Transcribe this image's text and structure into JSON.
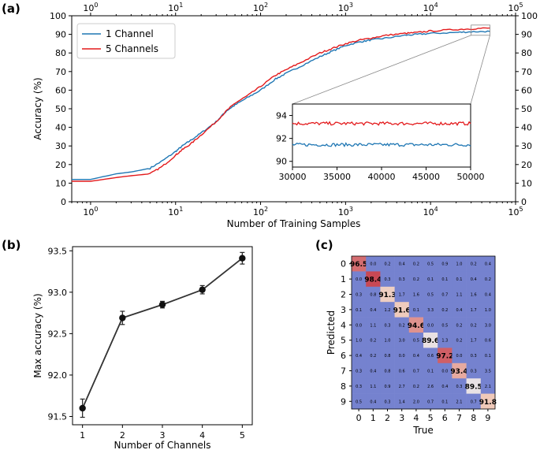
{
  "panel_labels": [
    "(a)",
    "(b)",
    "(c)"
  ],
  "colors": {
    "one_channel": "#1f77b4",
    "five_channels": "#e31a1c",
    "axis": "#000000",
    "cm_low": "#7582cf",
    "cm_high": "#c84652",
    "cm_mid": "#e8e8ee"
  },
  "chart_data": [
    {
      "id": "a",
      "type": "line",
      "title": "",
      "xlabel": "Number of Training Samples",
      "ylabel": "Accuracy (%)",
      "xscale": "log",
      "xlim": [
        0.6,
        100000
      ],
      "ylim": [
        0,
        100
      ],
      "grid": false,
      "legend_position": "top-left",
      "x_ticks": [
        1,
        10,
        100,
        1000,
        10000,
        100000
      ],
      "x_tick_labels": [
        "10^0",
        "10^1",
        "10^2",
        "10^3",
        "10^4",
        "10^5"
      ],
      "y_ticks": [
        0,
        10,
        20,
        30,
        40,
        50,
        60,
        70,
        80,
        90,
        100
      ],
      "y_tick_labels": [
        "0",
        "10",
        "20",
        "30",
        "40",
        "50",
        "60",
        "70",
        "80",
        "90",
        "100"
      ],
      "series": [
        {
          "name": "1 Channel",
          "x": [
            0.6,
            1,
            2,
            3,
            5,
            7,
            10,
            12,
            15,
            20,
            30,
            40,
            50,
            70,
            100,
            150,
            200,
            300,
            500,
            700,
            1000,
            1500,
            2000,
            3000,
            5000,
            7000,
            10000,
            20000,
            30000,
            50000
          ],
          "y": [
            12,
            12,
            15,
            16,
            18,
            22,
            27,
            30,
            33,
            37,
            43,
            49,
            52,
            56,
            60,
            66,
            69,
            73,
            78,
            81,
            84,
            86,
            87,
            88,
            89.5,
            90,
            90.5,
            91,
            91.4,
            91.6
          ]
        },
        {
          "name": "5 Channels",
          "x": [
            0.6,
            1,
            2,
            3,
            5,
            7,
            10,
            12,
            15,
            20,
            30,
            40,
            50,
            70,
            100,
            150,
            200,
            300,
            500,
            700,
            1000,
            1500,
            2000,
            3000,
            5000,
            7000,
            10000,
            20000,
            30000,
            50000
          ],
          "y": [
            11,
            11,
            13,
            14,
            15,
            19,
            25,
            28,
            31,
            36,
            43,
            49,
            53,
            57,
            62,
            68,
            71,
            75,
            80,
            82.5,
            85,
            87,
            88,
            89.5,
            90.5,
            91,
            91.8,
            92.6,
            93,
            93.4
          ]
        }
      ],
      "inset": {
        "xlim": [
          30000,
          50000
        ],
        "ylim": [
          89.5,
          95
        ],
        "x_ticks": [
          30000,
          35000,
          40000,
          45000,
          50000
        ],
        "x_tick_labels": [
          "30000",
          "35000",
          "40000",
          "45000",
          "50000"
        ],
        "y_ticks": [
          90,
          92,
          94
        ],
        "y_tick_labels": [
          "90",
          "92",
          "94"
        ],
        "series_levels": {
          "1 Channel": 91.45,
          "5 Channels": 93.3
        }
      }
    },
    {
      "id": "b",
      "type": "line",
      "title": "",
      "xlabel": "Number of Channels",
      "ylabel": "Max accuracy (%)",
      "xlim": [
        0.75,
        5.25
      ],
      "ylim": [
        91.4,
        93.55
      ],
      "grid": false,
      "x_ticks": [
        1,
        2,
        3,
        4,
        5
      ],
      "x_tick_labels": [
        "1",
        "2",
        "3",
        "4",
        "5"
      ],
      "y_ticks": [
        91.5,
        92.0,
        92.5,
        93.0,
        93.5
      ],
      "y_tick_labels": [
        "91.5",
        "92.0",
        "92.5",
        "93.0",
        "93.5"
      ],
      "series": [
        {
          "name": "Max accuracy",
          "x": [
            1,
            2,
            3,
            4,
            5
          ],
          "y": [
            91.6,
            92.69,
            92.85,
            93.03,
            93.41
          ],
          "err": [
            0.11,
            0.08,
            0.04,
            0.05,
            0.07
          ]
        }
      ]
    },
    {
      "id": "c",
      "type": "heatmap",
      "title": "",
      "xlabel": "True",
      "ylabel": "Predicted",
      "x_tick_labels": [
        "0",
        "1",
        "2",
        "3",
        "4",
        "5",
        "6",
        "7",
        "8",
        "9"
      ],
      "y_tick_labels": [
        "0",
        "1",
        "2",
        "3",
        "4",
        "5",
        "6",
        "7",
        "8",
        "9"
      ],
      "matrix": [
        [
          "96.5",
          "0.0",
          "0.2",
          "0.4",
          "0.2",
          "0.5",
          "0.9",
          "1.0",
          "0.2",
          "0.4"
        ],
        [
          "0.0",
          "98.4",
          "0.3",
          "0.3",
          "0.2",
          "0.1",
          "0.1",
          "0.1",
          "0.4",
          "0.2"
        ],
        [
          "0.3",
          "0.8",
          "91.3",
          "1.7",
          "1.6",
          "0.5",
          "0.7",
          "1.1",
          "1.6",
          "0.4"
        ],
        [
          "0.1",
          "0.4",
          "1.2",
          "91.6",
          "0.1",
          "3.3",
          "0.2",
          "0.4",
          "1.7",
          "1.0"
        ],
        [
          "0.0",
          "1.1",
          "0.3",
          "0.2",
          "94.6",
          "0.0",
          "0.5",
          "0.2",
          "0.2",
          "3.0"
        ],
        [
          "1.0",
          "0.2",
          "1.0",
          "3.0",
          "0.5",
          "89.6",
          "1.3",
          "0.2",
          "1.7",
          "0.6"
        ],
        [
          "0.4",
          "0.2",
          "0.8",
          "0.0",
          "0.4",
          "0.6",
          "97.2",
          "0.0",
          "0.3",
          "0.1"
        ],
        [
          "0.3",
          "0.4",
          "0.8",
          "0.6",
          "0.7",
          "0.1",
          "0.0",
          "93.4",
          "0.3",
          "3.5"
        ],
        [
          "0.3",
          "1.1",
          "0.9",
          "2.7",
          "0.2",
          "2.6",
          "0.4",
          "0.3",
          "89.5",
          "2.1"
        ],
        [
          "0.5",
          "0.4",
          "0.3",
          "1.4",
          "2.0",
          "0.7",
          "0.1",
          "2.1",
          "0.7",
          "91.8"
        ]
      ]
    }
  ]
}
